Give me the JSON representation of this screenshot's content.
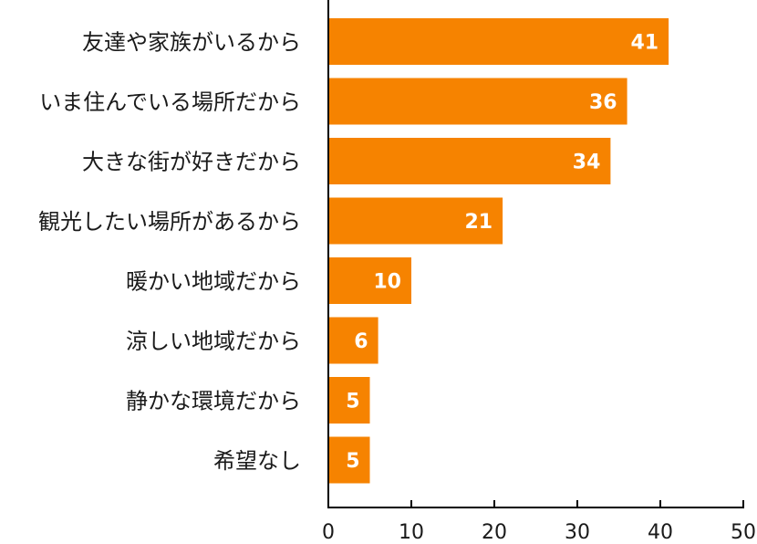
{
  "chart_data": {
    "type": "bar",
    "orientation": "horizontal",
    "categories": [
      "友達や家族がいるから",
      "いま住んでいる場所だから",
      "大きな街が好きだから",
      "観光したい場所があるから",
      "暖かい地域だから",
      "涼しい地域だから",
      "静かな環境だから",
      "希望なし"
    ],
    "values": [
      41,
      36,
      34,
      21,
      10,
      6,
      5,
      5
    ],
    "value_labels": [
      "41",
      "36",
      "34",
      "21",
      "10",
      "6",
      "5",
      "5"
    ],
    "title": "",
    "xlabel": "",
    "ylabel": "",
    "xlim": [
      0,
      50
    ],
    "ticks": [
      0,
      10,
      20,
      30,
      40,
      50
    ],
    "tick_labels": [
      "0",
      "10",
      "20",
      "30",
      "40",
      "50"
    ],
    "grid": false,
    "legend": "none",
    "bar_color": "#F68300",
    "axis_color": "#000000",
    "data_label_color": "#FFFFFF"
  }
}
